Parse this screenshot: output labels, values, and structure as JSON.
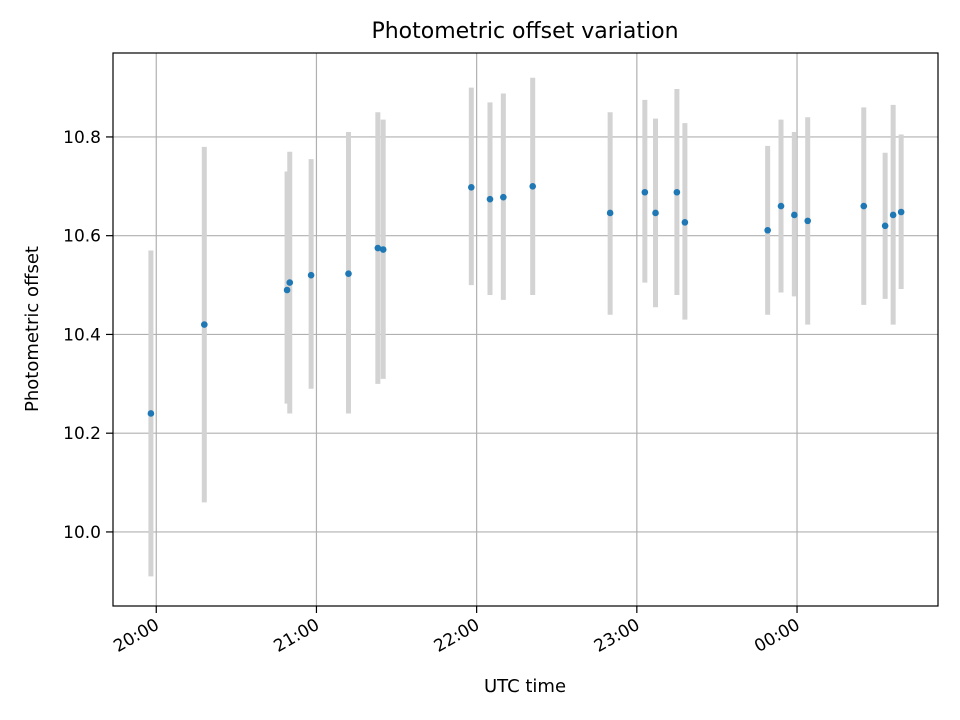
{
  "chart_data": {
    "type": "scatter",
    "title": "Photometric offset variation",
    "xlabel": "UTC time",
    "ylabel": "Photometric offset",
    "grid": true,
    "x_tick_labels": [
      "20:00",
      "21:00",
      "22:00",
      "23:00",
      "00:00"
    ],
    "x_tick_hours": [
      20,
      21,
      22,
      23,
      24
    ],
    "xlim_hours": [
      19.73,
      24.88
    ],
    "y_ticks": [
      10.0,
      10.2,
      10.4,
      10.6,
      10.8
    ],
    "y_tick_labels": [
      "10.0",
      "10.2",
      "10.4",
      "10.6",
      "10.8"
    ],
    "ylim": [
      9.85,
      10.97
    ],
    "series": [
      {
        "marker_color": "#1f77b4",
        "errorbar_color": "#d3d3d3",
        "points": [
          {
            "t": "19:58",
            "y": 10.24,
            "low": 9.91,
            "high": 10.57
          },
          {
            "t": "20:18",
            "y": 10.42,
            "low": 10.06,
            "high": 10.78
          },
          {
            "t": "20:49",
            "y": 10.49,
            "low": 10.26,
            "high": 10.73
          },
          {
            "t": "20:50",
            "y": 10.505,
            "low": 10.24,
            "high": 10.77
          },
          {
            "t": "20:58",
            "y": 10.52,
            "low": 10.29,
            "high": 10.755
          },
          {
            "t": "21:12",
            "y": 10.523,
            "low": 10.24,
            "high": 10.81
          },
          {
            "t": "21:23",
            "y": 10.575,
            "low": 10.3,
            "high": 10.85
          },
          {
            "t": "21:25",
            "y": 10.572,
            "low": 10.31,
            "high": 10.835
          },
          {
            "t": "21:58",
            "y": 10.698,
            "low": 10.5,
            "high": 10.9
          },
          {
            "t": "22:05",
            "y": 10.674,
            "low": 10.48,
            "high": 10.87
          },
          {
            "t": "22:10",
            "y": 10.678,
            "low": 10.47,
            "high": 10.888
          },
          {
            "t": "22:21",
            "y": 10.7,
            "low": 10.48,
            "high": 10.92
          },
          {
            "t": "22:50",
            "y": 10.646,
            "low": 10.44,
            "high": 10.85
          },
          {
            "t": "23:03",
            "y": 10.688,
            "low": 10.505,
            "high": 10.875
          },
          {
            "t": "23:07",
            "y": 10.646,
            "low": 10.455,
            "high": 10.837
          },
          {
            "t": "23:15",
            "y": 10.688,
            "low": 10.48,
            "high": 10.897
          },
          {
            "t": "23:18",
            "y": 10.627,
            "low": 10.43,
            "high": 10.828
          },
          {
            "t": "23:49",
            "y": 10.611,
            "low": 10.44,
            "high": 10.782
          },
          {
            "t": "23:54",
            "y": 10.66,
            "low": 10.485,
            "high": 10.835
          },
          {
            "t": "23:59",
            "y": 10.642,
            "low": 10.477,
            "high": 10.81
          },
          {
            "t": "00:04",
            "y": 10.63,
            "low": 10.42,
            "high": 10.84
          },
          {
            "t": "00:25",
            "y": 10.66,
            "low": 10.46,
            "high": 10.86
          },
          {
            "t": "00:33",
            "y": 10.62,
            "low": 10.472,
            "high": 10.768
          },
          {
            "t": "00:36",
            "y": 10.642,
            "low": 10.42,
            "high": 10.865
          },
          {
            "t": "00:39",
            "y": 10.648,
            "low": 10.492,
            "high": 10.805
          }
        ]
      }
    ]
  }
}
